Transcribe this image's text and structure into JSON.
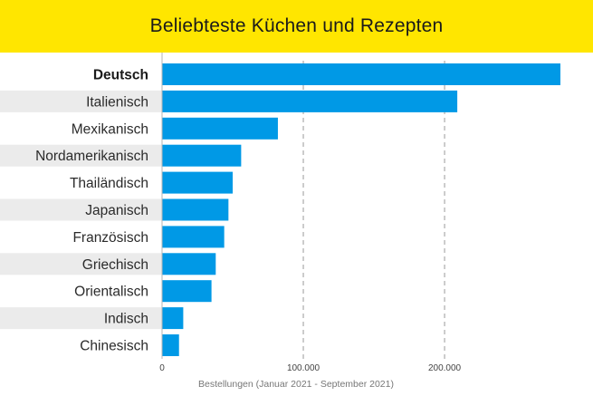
{
  "header": {
    "title": "Beliebteste Küchen und Rezepten",
    "background": "#ffe600"
  },
  "chart_data": {
    "type": "bar",
    "orientation": "horizontal",
    "title": "Beliebteste Küchen und Rezepten",
    "categories": [
      "Deutsch",
      "Italienisch",
      "Mexikanisch",
      "Nordamerikanisch",
      "Thailändisch",
      "Japanisch",
      "Französisch",
      "Griechisch",
      "Orientalisch",
      "Indisch",
      "Chinesisch"
    ],
    "values": [
      282000,
      209000,
      82000,
      56000,
      50000,
      47000,
      44000,
      38000,
      35000,
      15000,
      12000
    ],
    "xlabel": "Bestellungen (Januar 2021 - September 2021)",
    "ylabel": "",
    "xlim": [
      0,
      282000
    ],
    "xticks": [
      0,
      100000,
      200000
    ],
    "xtick_labels": [
      "0",
      "100.000",
      "200.000"
    ],
    "grid": "vertical dashed at ticks",
    "bar_color": "#0099e6",
    "row_stripe_color": "#ebebeb",
    "highlighted_category": "Deutsch"
  }
}
